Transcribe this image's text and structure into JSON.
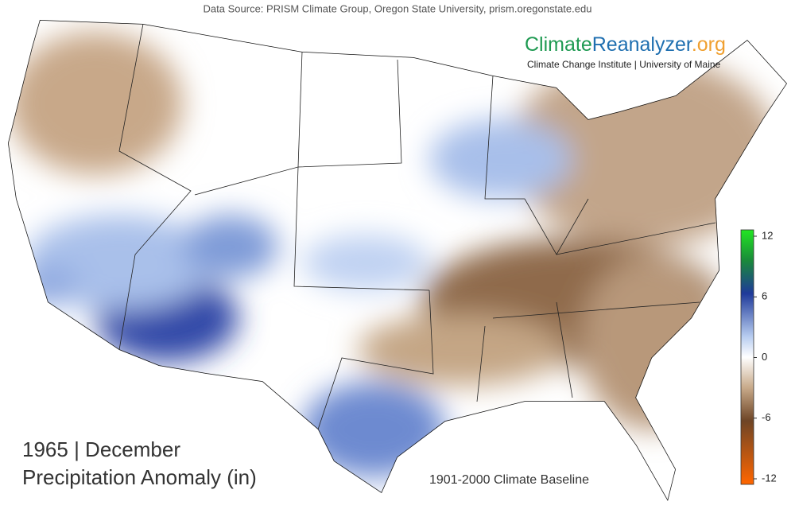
{
  "source": "Data Source: PRISM Climate Group, Oregon State University, prism.oregonstate.edu",
  "logo": {
    "part1": "Climate",
    "part2": "Reanalyzer",
    "part3": ".org",
    "subtitle": "Climate Change Institute | University of Maine"
  },
  "title": {
    "line1": "1965 | December",
    "line2": "Precipitation Anomaly (in)"
  },
  "baseline": "1901-2000 Climate Baseline",
  "colorbar": {
    "lim": [
      -12,
      12
    ],
    "ticks": [
      12,
      6,
      0,
      -6,
      -12
    ]
  }
}
